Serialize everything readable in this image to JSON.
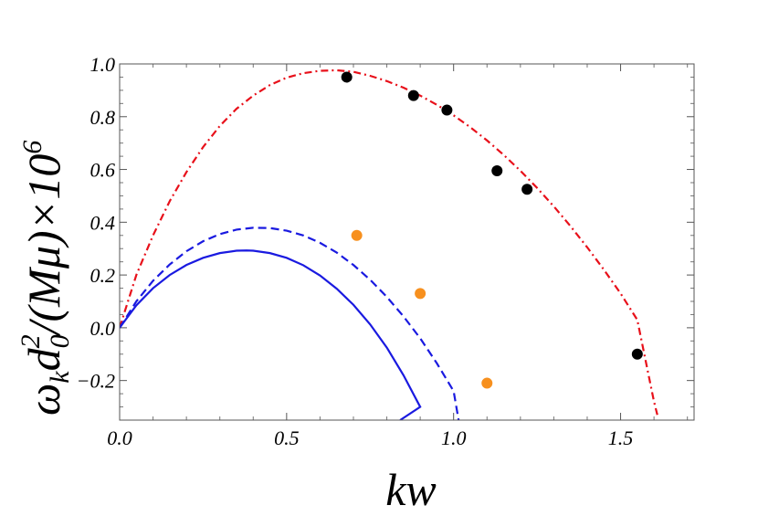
{
  "chart_data": {
    "type": "line",
    "title": "",
    "xlabel": "kw",
    "ylabel_parts": {
      "omega": "ω",
      "omega_sub": "k",
      "d": "d",
      "d_sub": "0",
      "d_sup": "2",
      "middle": "/(Mμ)×10",
      "exp": "6"
    },
    "xlim": [
      0.0,
      1.72
    ],
    "ylim": [
      -0.35,
      1.0
    ],
    "x_ticks": [
      {
        "value": 0.0,
        "label": "0.0"
      },
      {
        "value": 0.5,
        "label": "0.5"
      },
      {
        "value": 1.0,
        "label": "1.0"
      },
      {
        "value": 1.5,
        "label": "1.5"
      }
    ],
    "y_ticks": [
      {
        "value": -0.2,
        "label": "−0.2"
      },
      {
        "value": 0.0,
        "label": "0.0"
      },
      {
        "value": 0.2,
        "label": "0.2"
      },
      {
        "value": 0.4,
        "label": "0.4"
      },
      {
        "value": 0.6,
        "label": "0.6"
      },
      {
        "value": 0.8,
        "label": "0.8"
      },
      {
        "value": 1.0,
        "label": "1.0"
      }
    ],
    "grid": false,
    "series": [
      {
        "kind": "curve",
        "color": "#e8101a",
        "dash": "dash-dot",
        "points": [
          [
            0.0,
            0.0
          ],
          [
            0.05,
            0.2
          ],
          [
            0.1,
            0.35
          ],
          [
            0.15,
            0.48
          ],
          [
            0.2,
            0.59
          ],
          [
            0.25,
            0.685
          ],
          [
            0.3,
            0.765
          ],
          [
            0.35,
            0.83
          ],
          [
            0.4,
            0.88
          ],
          [
            0.45,
            0.92
          ],
          [
            0.5,
            0.948
          ],
          [
            0.55,
            0.965
          ],
          [
            0.6,
            0.974
          ],
          [
            0.65,
            0.976
          ],
          [
            0.7,
            0.97
          ],
          [
            0.75,
            0.955
          ],
          [
            0.8,
            0.935
          ],
          [
            0.85,
            0.91
          ],
          [
            0.9,
            0.88
          ],
          [
            0.95,
            0.845
          ],
          [
            1.0,
            0.805
          ],
          [
            1.05,
            0.76
          ],
          [
            1.1,
            0.71
          ],
          [
            1.15,
            0.655
          ],
          [
            1.2,
            0.595
          ],
          [
            1.25,
            0.53
          ],
          [
            1.3,
            0.46
          ],
          [
            1.35,
            0.385
          ],
          [
            1.4,
            0.305
          ],
          [
            1.45,
            0.22
          ],
          [
            1.5,
            0.13
          ],
          [
            1.55,
            0.03
          ],
          [
            1.6,
            -0.28
          ],
          [
            1.61,
            -0.33
          ]
        ]
      },
      {
        "kind": "curve",
        "color": "#1a1ae0",
        "dash": "dashed",
        "points": [
          [
            0.0,
            0.0
          ],
          [
            0.05,
            0.1
          ],
          [
            0.1,
            0.178
          ],
          [
            0.15,
            0.24
          ],
          [
            0.2,
            0.29
          ],
          [
            0.25,
            0.328
          ],
          [
            0.3,
            0.355
          ],
          [
            0.35,
            0.372
          ],
          [
            0.4,
            0.379
          ],
          [
            0.45,
            0.378
          ],
          [
            0.5,
            0.368
          ],
          [
            0.55,
            0.35
          ],
          [
            0.6,
            0.322
          ],
          [
            0.65,
            0.285
          ],
          [
            0.7,
            0.238
          ],
          [
            0.75,
            0.182
          ],
          [
            0.8,
            0.117
          ],
          [
            0.85,
            0.043
          ],
          [
            0.9,
            -0.04
          ],
          [
            0.95,
            -0.135
          ],
          [
            1.0,
            -0.24
          ],
          [
            1.015,
            -0.35
          ]
        ]
      },
      {
        "kind": "curve",
        "color": "#1a1ae0",
        "dash": "solid",
        "points": [
          [
            0.0,
            0.0
          ],
          [
            0.05,
            0.085
          ],
          [
            0.1,
            0.15
          ],
          [
            0.15,
            0.2
          ],
          [
            0.2,
            0.238
          ],
          [
            0.25,
            0.265
          ],
          [
            0.3,
            0.283
          ],
          [
            0.35,
            0.292
          ],
          [
            0.38,
            0.293
          ],
          [
            0.4,
            0.292
          ],
          [
            0.45,
            0.283
          ],
          [
            0.5,
            0.265
          ],
          [
            0.55,
            0.237
          ],
          [
            0.6,
            0.198
          ],
          [
            0.65,
            0.148
          ],
          [
            0.7,
            0.087
          ],
          [
            0.75,
            0.013
          ],
          [
            0.8,
            -0.075
          ],
          [
            0.85,
            -0.18
          ],
          [
            0.9,
            -0.3
          ],
          [
            0.84,
            -0.35
          ]
        ]
      },
      {
        "kind": "points",
        "color": "#000000",
        "points": [
          [
            0.68,
            0.95
          ],
          [
            0.88,
            0.88
          ],
          [
            0.98,
            0.825
          ],
          [
            1.13,
            0.595
          ],
          [
            1.22,
            0.525
          ],
          [
            1.55,
            -0.1
          ]
        ]
      },
      {
        "kind": "points",
        "color": "#f7901e",
        "points": [
          [
            0.71,
            0.35
          ],
          [
            0.9,
            0.13
          ],
          [
            1.1,
            -0.21
          ]
        ]
      }
    ]
  }
}
